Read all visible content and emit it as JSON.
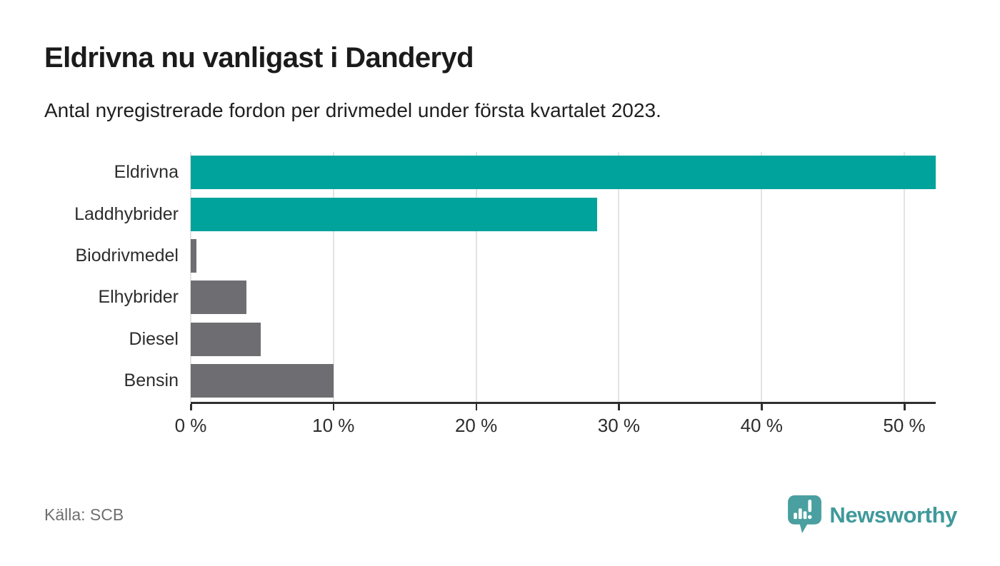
{
  "header": {
    "title": "Eldrivna nu vanligast i Danderyd",
    "subtitle": "Antal nyregistrerade fordon per drivmedel under första kvartalet 2023."
  },
  "chart_data": {
    "type": "bar",
    "orientation": "horizontal",
    "title": "Eldrivna nu vanligast i Danderyd",
    "subtitle": "Antal nyregistrerade fordon per drivmedel under första kvartalet 2023.",
    "categories": [
      "Eldrivna",
      "Laddhybrider",
      "Biodrivmedel",
      "Elhybrider",
      "Diesel",
      "Bensin"
    ],
    "values": [
      52.2,
      28.5,
      0.4,
      3.9,
      4.9,
      10.0
    ],
    "unit": "%",
    "xlim": [
      0,
      52.2
    ],
    "xticks": [
      0,
      10,
      20,
      30,
      40,
      50
    ],
    "xtick_labels": [
      "0 %",
      "10 %",
      "20 %",
      "30 %",
      "40 %",
      "50 %"
    ],
    "bar_colors": [
      "#00a39b",
      "#00a39b",
      "#6e6e72",
      "#6e6e72",
      "#6e6e72",
      "#6e6e72"
    ],
    "grid": true,
    "legend": false
  },
  "colors": {
    "highlight_bar": "#00a39b",
    "default_bar": "#6e6e72",
    "gridline": "#e3e3e3",
    "axis": "#2f2f2f",
    "brand_teal": "#40999b",
    "brand_icon": "#4a9fa0"
  },
  "footer": {
    "source": "Källa: SCB",
    "brand": "Newsworthy"
  }
}
